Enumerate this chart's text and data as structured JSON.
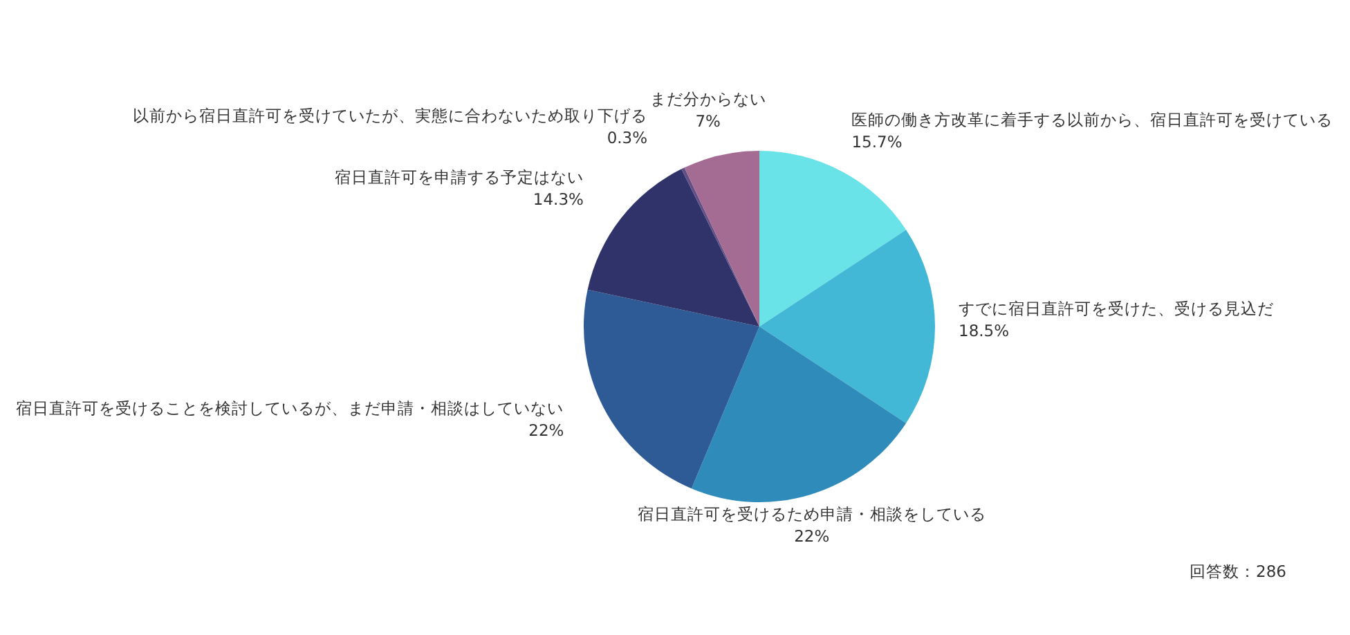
{
  "chart_data": {
    "type": "pie",
    "categories": [
      "医師の働き方改革に着手する以前から、宿日直許可を受けている",
      "すでに宿日直許可を受けた、受ける見込だ",
      "宿日直許可を受けるため申請・相談をしている",
      "宿日直許可を受けることを検討しているが、まだ申請・相談はしていない",
      "宿日直許可を申請する予定はない",
      "以前から宿日直許可を受けていたが、実態に合わないため取り下げる",
      "まだ分からない"
    ],
    "values": [
      15.7,
      18.5,
      22,
      22,
      14.3,
      0.3,
      7
    ],
    "value_labels": [
      "15.7%",
      "18.5%",
      "22%",
      "22%",
      "14.3%",
      "0.3%",
      "7%"
    ],
    "colors": [
      "#69e3e7",
      "#42b8d6",
      "#2e8bba",
      "#2e5b96",
      "#2f3369",
      "#614f86",
      "#a56c93"
    ],
    "annotations": [
      "回答数：286"
    ]
  }
}
